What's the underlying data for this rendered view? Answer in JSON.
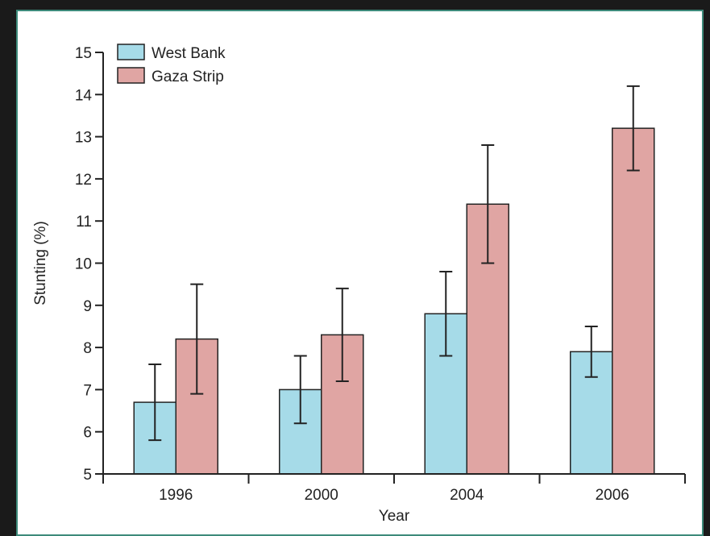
{
  "chart_data": {
    "type": "bar",
    "categories": [
      "1996",
      "2000",
      "2004",
      "2006"
    ],
    "series": [
      {
        "name": "West Bank",
        "values": [
          6.7,
          7.0,
          8.8,
          7.9
        ],
        "error_low": [
          5.8,
          6.2,
          7.8,
          7.3
        ],
        "error_high": [
          7.6,
          7.8,
          9.8,
          8.5
        ],
        "color": "#a6dbe8"
      },
      {
        "name": "Gaza Strip",
        "values": [
          8.2,
          8.3,
          11.4,
          13.2
        ],
        "error_low": [
          6.9,
          7.2,
          10.0,
          12.2
        ],
        "error_high": [
          9.5,
          9.4,
          12.8,
          14.2
        ],
        "color": "#e0a5a3"
      }
    ],
    "xlabel": "Year",
    "ylabel": "Stunting (%)",
    "ylim": [
      5,
      15
    ],
    "yticks": [
      5,
      6,
      7,
      8,
      9,
      10,
      11,
      12,
      13,
      14,
      15
    ],
    "legend_position": "top-left",
    "grid": false
  }
}
